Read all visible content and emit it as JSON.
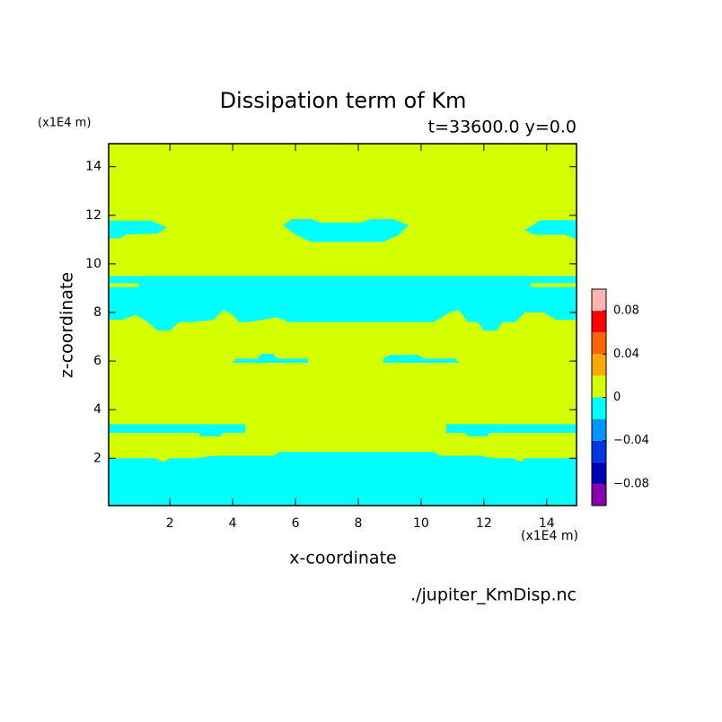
{
  "chart_data": {
    "type": "contour",
    "title": "Dissipation term of Km",
    "subtitle": "t=33600.0 y=0.0",
    "x_label": "x-coordinate",
    "y_label": "z-coordinate",
    "x_unit": "(x1E4 m)",
    "y_unit": "(x1E4 m)",
    "source": "./jupiter_KmDisp.nc",
    "xlim": [
      0.05,
      14.95
    ],
    "ylim": [
      0.05,
      14.95
    ],
    "xticks": [
      2,
      4,
      6,
      8,
      10,
      12,
      14
    ],
    "yticks": [
      2,
      4,
      6,
      8,
      10,
      12,
      14
    ],
    "levels": [
      -0.1,
      -0.08,
      -0.06,
      -0.04,
      -0.02,
      0,
      0.02,
      0.04,
      0.06,
      0.08,
      0.1
    ],
    "colors": [
      "#8a00b0",
      "#0000b8",
      "#0036e6",
      "#0094ff",
      "#00ffff",
      "#d4ff00",
      "#ffa800",
      "#ff6400",
      "#ff0000",
      "#ffb4b4"
    ],
    "colorbar_ticks": [
      {
        "value": -0.08,
        "label": "−0.08"
      },
      {
        "value": -0.04,
        "label": "−0.04"
      },
      0,
      0.04,
      0.08
    ],
    "background_band": [
      0,
      0.02
    ],
    "regions": [
      {
        "band": [
          -0.02,
          0
        ],
        "x": [
          0.05,
          14.95,
          14.95,
          13.3,
          13.2,
          12.9,
          12.3,
          11.9,
          10.6,
          10.4,
          5.5,
          5.3,
          3.4,
          2.8,
          2.0,
          1.8,
          1.5,
          0.05
        ],
        "y": [
          0.05,
          0.05,
          2.0,
          2.0,
          1.85,
          2.0,
          2.0,
          2.1,
          2.1,
          2.26,
          2.26,
          2.1,
          2.1,
          2.0,
          2.0,
          1.85,
          2.0,
          2.0
        ]
      },
      {
        "band": [
          -0.02,
          0
        ],
        "x": [
          0.05,
          2.9,
          3.0,
          3.6,
          3.7,
          4.4,
          4.4,
          0.05
        ],
        "y": [
          3.04,
          3.04,
          2.9,
          2.9,
          3.04,
          3.04,
          3.4,
          3.4
        ]
      },
      {
        "band": [
          -0.02,
          0
        ],
        "x": [
          10.8,
          14.95,
          14.95,
          12.2,
          12.1,
          11.5,
          11.4,
          10.8
        ],
        "y": [
          3.4,
          3.4,
          3.04,
          3.04,
          2.9,
          2.9,
          3.04,
          3.04
        ]
      },
      {
        "band": [
          -0.02,
          0
        ],
        "x": [
          4.0,
          6.4,
          6.4,
          5.4,
          5.3,
          4.9,
          4.8,
          4.1
        ],
        "y": [
          5.93,
          5.93,
          6.1,
          6.1,
          6.3,
          6.3,
          6.1,
          6.1
        ]
      },
      {
        "band": [
          -0.02,
          0
        ],
        "x": [
          8.8,
          11.2,
          11.1,
          10.1,
          9.9,
          9.0,
          8.8
        ],
        "y": [
          5.93,
          5.93,
          6.1,
          6.1,
          6.25,
          6.25,
          6.1
        ]
      },
      {
        "band": [
          -0.02,
          0
        ],
        "x": [
          0.05,
          14.95,
          14.95,
          14.3,
          13.9,
          13.3,
          13.0,
          12.6,
          12.4,
          12.0,
          11.8,
          11.5,
          11.2,
          10.9,
          10.4,
          5.8,
          5.4,
          4.5,
          4.2,
          4.0,
          3.7,
          3.4,
          2.7,
          2.3,
          2.0,
          1.6,
          1.3,
          0.9,
          0.5,
          0.05
        ],
        "y": [
          9.5,
          9.5,
          7.7,
          7.7,
          8.0,
          8.0,
          7.6,
          7.6,
          7.25,
          7.25,
          7.6,
          7.6,
          8.1,
          8.0,
          7.6,
          7.6,
          7.8,
          7.6,
          7.6,
          7.9,
          8.1,
          7.7,
          7.6,
          7.6,
          7.25,
          7.25,
          7.6,
          7.9,
          7.7,
          7.7
        ]
      },
      {
        "band": [
          0,
          0.02
        ],
        "x": [
          0.05,
          1.0,
          1.0,
          0.05
        ],
        "y": [
          9.05,
          9.05,
          9.2,
          9.2
        ]
      },
      {
        "band": [
          0,
          0.02
        ],
        "x": [
          13.5,
          14.95,
          14.95,
          13.5
        ],
        "y": [
          9.05,
          9.05,
          9.2,
          9.2
        ]
      },
      {
        "band": [
          -0.02,
          0
        ],
        "x": [
          5.6,
          5.9,
          6.5,
          6.8,
          8.1,
          8.4,
          9.1,
          9.6,
          9.3,
          8.8,
          6.5,
          6.0
        ],
        "y": [
          11.6,
          11.85,
          11.85,
          11.7,
          11.7,
          11.85,
          11.85,
          11.6,
          11.2,
          10.9,
          10.9,
          11.2
        ]
      },
      {
        "band": [
          -0.02,
          0
        ],
        "x": [
          0.05,
          1.4,
          1.9,
          1.6,
          0.6,
          0.4,
          0.05
        ],
        "y": [
          11.78,
          11.78,
          11.5,
          11.25,
          11.2,
          11.05,
          11.05
        ]
      },
      {
        "band": [
          -0.02,
          0
        ],
        "x": [
          14.95,
          13.8,
          13.3,
          13.6,
          14.6,
          14.95
        ],
        "y": [
          11.8,
          11.8,
          11.4,
          11.2,
          11.2,
          11.0
        ]
      }
    ]
  }
}
